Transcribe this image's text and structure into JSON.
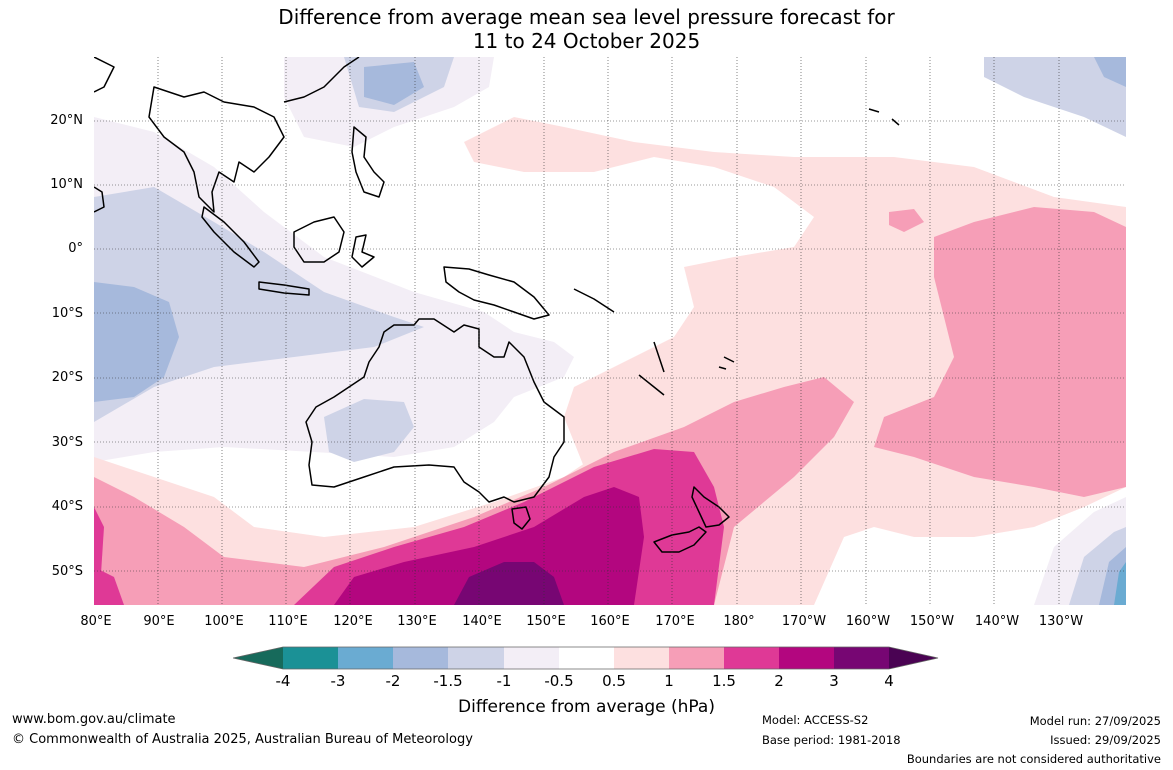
{
  "title_line1": "Difference from average mean sea level pressure forecast for",
  "title_line2": "11 to 24 October 2025",
  "lat_labels": [
    "20°N",
    "10°N",
    "0°",
    "10°S",
    "20°S",
    "30°S",
    "40°S",
    "50°S"
  ],
  "lon_labels": [
    "80°E",
    "90°E",
    "100°E",
    "110°E",
    "120°E",
    "130°E",
    "140°E",
    "150°E",
    "160°E",
    "170°E",
    "180°",
    "170°W",
    "160°W",
    "150°W",
    "140°W",
    "130°W"
  ],
  "colorbar": {
    "ticks": [
      "-4",
      "-3",
      "-2",
      "-1.5",
      "-1",
      "-0.5",
      "0.5",
      "1",
      "1.5",
      "2",
      "3",
      "4"
    ],
    "colors": [
      "#176a5b",
      "#1b9196",
      "#6aabd2",
      "#a6b9dc",
      "#ced3e7",
      "#f3eef6",
      "#ffffff",
      "#fde0e0",
      "#f69eb7",
      "#df3996",
      "#b3067f",
      "#770673",
      "#4a0353"
    ],
    "label": "Difference from average (hPa)"
  },
  "footer": {
    "website": "www.bom.gov.au/climate",
    "copyright": "© Commonwealth of Australia 2025, Australian Bureau of Meteorology",
    "model": "Model: ACCESS-S2",
    "base_period": "Base period: 1981-2018",
    "model_run": "Model run: 27/09/2025",
    "issued": "Issued: 29/09/2025",
    "boundaries": "Boundaries are not considered authoritative"
  }
}
